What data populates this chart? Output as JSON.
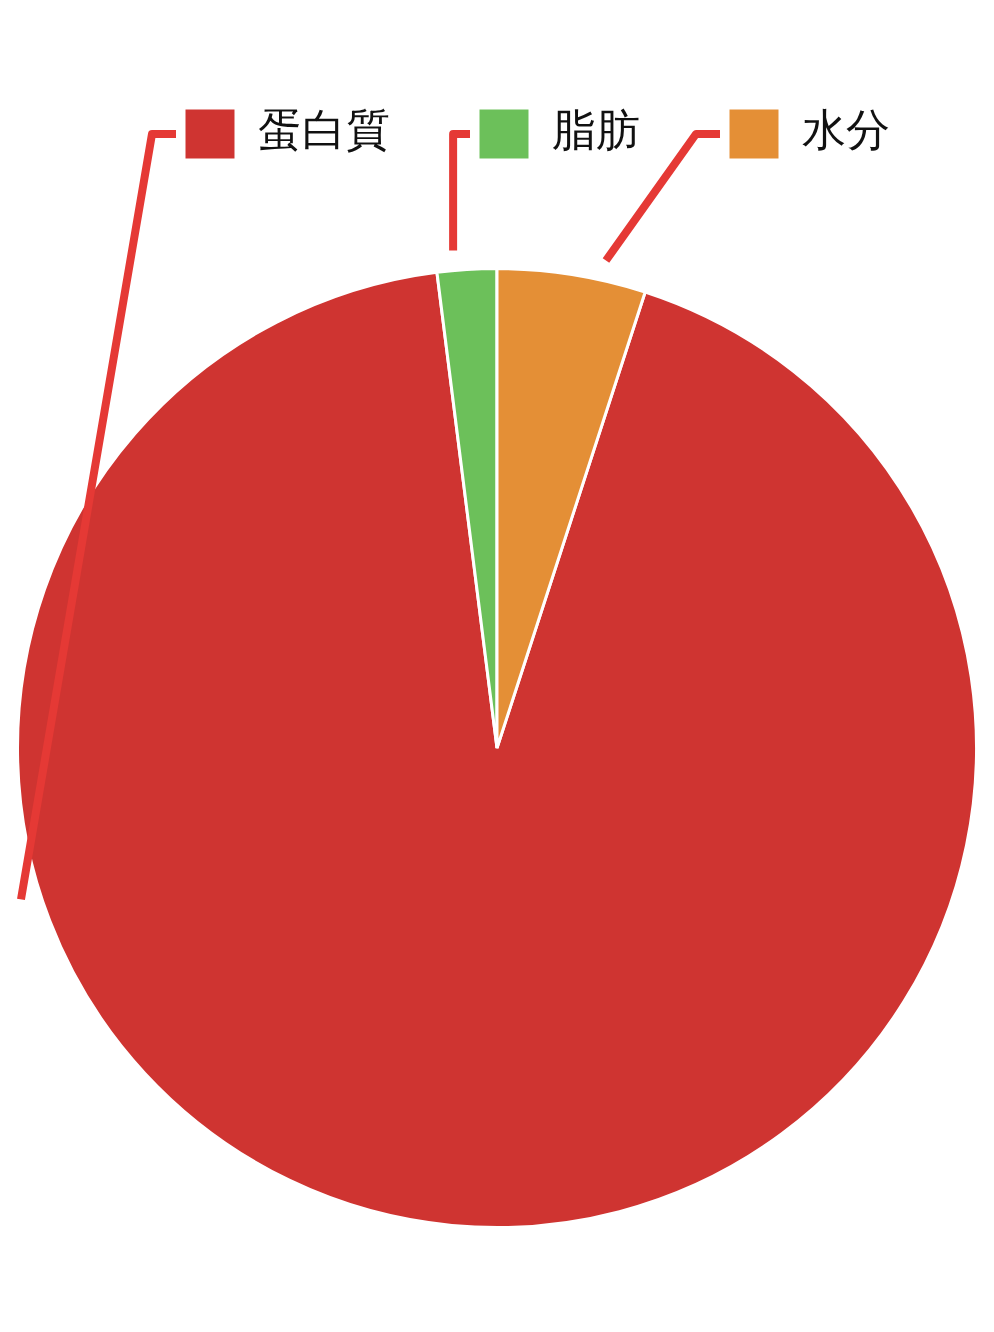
{
  "chart_data": {
    "type": "pie",
    "categories": [
      "蛋白質",
      "脂肪",
      "水分"
    ],
    "values": [
      93,
      2,
      5
    ],
    "colors": [
      "#cf3431",
      "#6cc05a",
      "#e48f36"
    ],
    "legend": "top"
  }
}
